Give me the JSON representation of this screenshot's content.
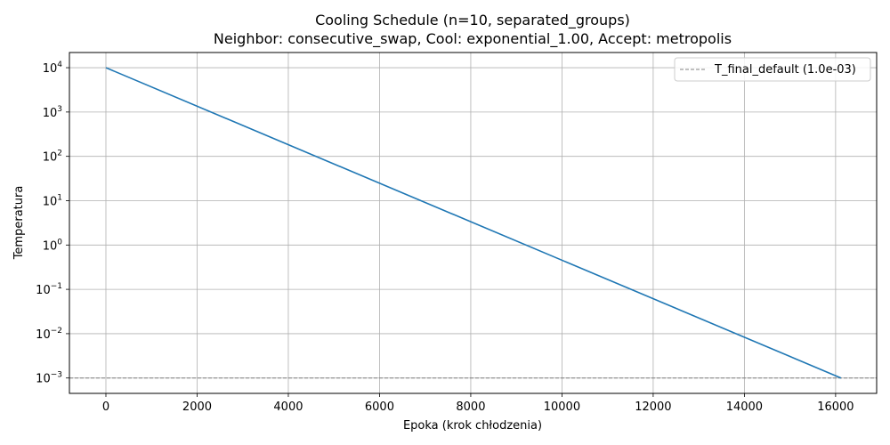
{
  "chart_data": {
    "type": "line",
    "title_lines": [
      "Cooling Schedule (n=10, separated_groups)",
      "Neighbor: consecutive_swap, Cool: exponential_1.00, Accept: metropolis"
    ],
    "xlabel": "Epoka (krok chłodzenia)",
    "ylabel": "Temperatura",
    "xlim": [
      -800,
      16900
    ],
    "ylim": [
      0.00045,
      22000
    ],
    "yscale": "log",
    "grid": true,
    "legend_placement": "top-right",
    "x_ticks": [
      0,
      2000,
      4000,
      6000,
      8000,
      10000,
      12000,
      14000,
      16000
    ],
    "x_tick_labels": [
      "0",
      "2000",
      "4000",
      "6000",
      "8000",
      "10000",
      "12000",
      "14000",
      "16000"
    ],
    "y_ticks": [
      0.001,
      0.01,
      0.1,
      1,
      10,
      100,
      1000,
      10000
    ],
    "y_tick_labels": [
      {
        "base": "10",
        "exp": "−3"
      },
      {
        "base": "10",
        "exp": "−2"
      },
      {
        "base": "10",
        "exp": "−1"
      },
      {
        "base": "10",
        "exp": "0"
      },
      {
        "base": "10",
        "exp": "1"
      },
      {
        "base": "10",
        "exp": "2"
      },
      {
        "base": "10",
        "exp": "3"
      },
      {
        "base": "10",
        "exp": "4"
      }
    ],
    "series": [
      {
        "color": "#1f77b4",
        "x": [
          0,
          16118
        ],
        "y": [
          10000,
          0.001
        ]
      }
    ],
    "reference_lines": [
      {
        "name": "T_final_default (1.0e-03)",
        "y": 0.001,
        "color": "#808080",
        "style": "dashed"
      }
    ]
  }
}
